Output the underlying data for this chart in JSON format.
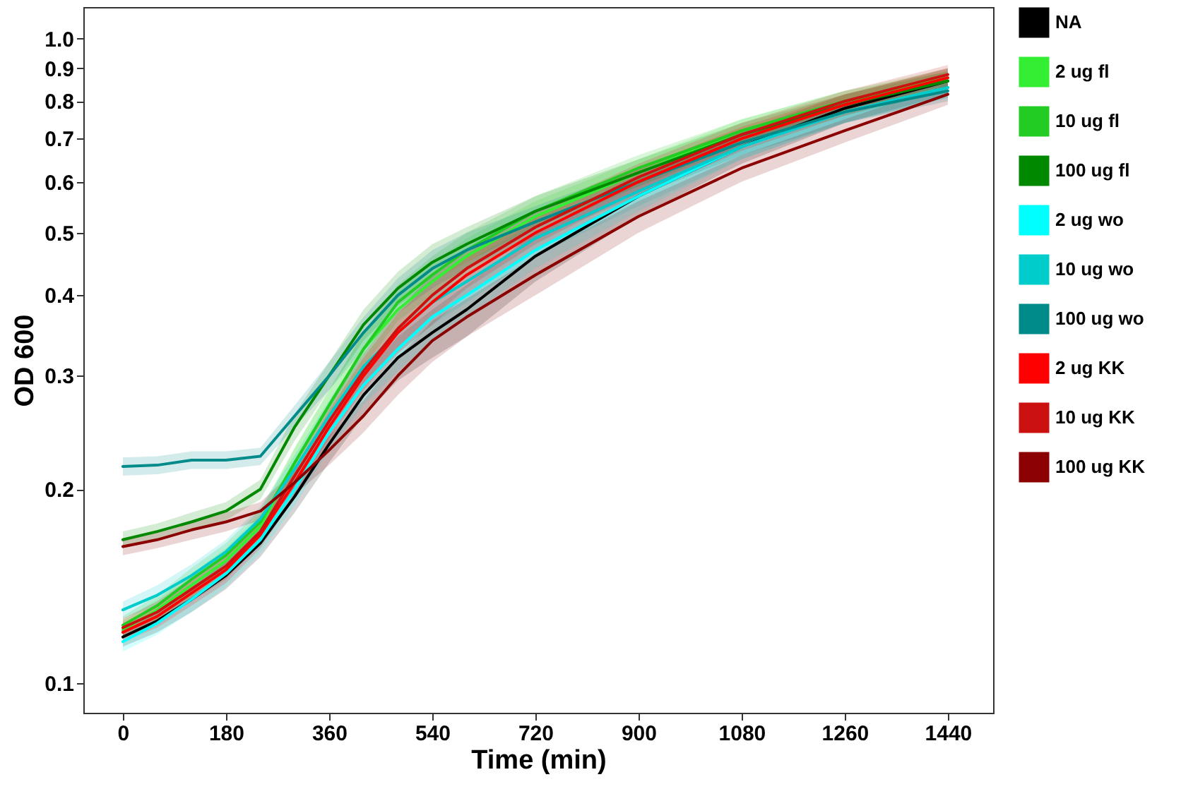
{
  "chart_data": {
    "type": "line",
    "xlabel": "Time (min)",
    "ylabel": "OD 600",
    "log": "y",
    "grid": false,
    "legend": "right",
    "marker": "none",
    "line_style": "solid",
    "xlim": [
      -69,
      1519
    ],
    "xticks": [
      0,
      180,
      360,
      540,
      720,
      900,
      1080,
      1260,
      1440
    ],
    "ylim": [
      0.09,
      1.12
    ],
    "yticks": [
      0.1,
      0.2,
      0.3,
      0.4,
      0.5,
      0.6,
      0.7,
      0.8,
      0.9,
      {
        "value": 1,
        "label": "1.0"
      }
    ],
    "x": [
      0,
      60,
      120,
      180,
      240,
      300,
      360,
      420,
      480,
      540,
      600,
      720,
      900,
      1080,
      1260,
      1440
    ],
    "series": [
      {
        "name": "NA",
        "color": "#000000",
        "values": [
          0.118,
          0.125,
          0.135,
          0.147,
          0.165,
          0.195,
          0.235,
          0.28,
          0.32,
          0.35,
          0.38,
          0.46,
          0.57,
          0.68,
          0.78,
          0.86
        ],
        "lower": [
          0.114,
          0.12,
          0.129,
          0.14,
          0.157,
          0.184,
          0.22,
          0.26,
          0.295,
          0.32,
          0.345,
          0.42,
          0.53,
          0.64,
          0.74,
          0.82
        ],
        "upper": [
          0.122,
          0.13,
          0.141,
          0.154,
          0.173,
          0.206,
          0.25,
          0.3,
          0.345,
          0.38,
          0.415,
          0.5,
          0.61,
          0.72,
          0.82,
          0.9
        ]
      },
      {
        "name": "2 ug fl",
        "color": "#33ee33",
        "values": [
          0.121,
          0.13,
          0.142,
          0.155,
          0.175,
          0.22,
          0.27,
          0.33,
          0.38,
          0.42,
          0.46,
          0.53,
          0.62,
          0.72,
          0.8,
          0.87
        ],
        "lower": [
          0.117,
          0.125,
          0.136,
          0.148,
          0.167,
          0.208,
          0.255,
          0.31,
          0.355,
          0.39,
          0.43,
          0.5,
          0.59,
          0.69,
          0.77,
          0.84
        ],
        "upper": [
          0.125,
          0.135,
          0.148,
          0.162,
          0.183,
          0.232,
          0.285,
          0.35,
          0.405,
          0.45,
          0.49,
          0.56,
          0.65,
          0.75,
          0.83,
          0.9
        ]
      },
      {
        "name": "10 ug fl",
        "color": "#22cc22",
        "values": [
          0.123,
          0.132,
          0.145,
          0.158,
          0.178,
          0.22,
          0.27,
          0.33,
          0.39,
          0.43,
          0.47,
          0.54,
          0.63,
          0.72,
          0.8,
          0.86
        ],
        "lower": [
          0.119,
          0.127,
          0.139,
          0.151,
          0.17,
          0.208,
          0.255,
          0.31,
          0.365,
          0.4,
          0.44,
          0.51,
          0.6,
          0.69,
          0.77,
          0.83
        ],
        "upper": [
          0.127,
          0.137,
          0.151,
          0.165,
          0.186,
          0.232,
          0.285,
          0.35,
          0.415,
          0.46,
          0.5,
          0.57,
          0.66,
          0.75,
          0.83,
          0.89
        ]
      },
      {
        "name": "100 ug fl",
        "color": "#008800",
        "values": [
          0.167,
          0.172,
          0.178,
          0.185,
          0.2,
          0.25,
          0.3,
          0.36,
          0.41,
          0.45,
          0.48,
          0.54,
          0.62,
          0.71,
          0.79,
          0.86
        ],
        "lower": [
          0.162,
          0.167,
          0.172,
          0.179,
          0.193,
          0.238,
          0.285,
          0.34,
          0.385,
          0.42,
          0.45,
          0.51,
          0.59,
          0.68,
          0.76,
          0.83
        ],
        "upper": [
          0.172,
          0.177,
          0.184,
          0.191,
          0.207,
          0.262,
          0.315,
          0.38,
          0.435,
          0.48,
          0.51,
          0.57,
          0.65,
          0.74,
          0.82,
          0.89
        ]
      },
      {
        "name": "2 ug wo",
        "color": "#00ffff",
        "values": [
          0.116,
          0.124,
          0.135,
          0.148,
          0.167,
          0.2,
          0.245,
          0.29,
          0.33,
          0.37,
          0.4,
          0.47,
          0.57,
          0.68,
          0.77,
          0.84
        ],
        "lower": [
          0.112,
          0.119,
          0.129,
          0.141,
          0.159,
          0.189,
          0.23,
          0.27,
          0.305,
          0.34,
          0.37,
          0.44,
          0.54,
          0.65,
          0.74,
          0.81
        ],
        "upper": [
          0.12,
          0.129,
          0.141,
          0.155,
          0.175,
          0.211,
          0.26,
          0.31,
          0.355,
          0.4,
          0.43,
          0.5,
          0.6,
          0.71,
          0.8,
          0.87
        ]
      },
      {
        "name": "10 ug wo",
        "color": "#00cccc",
        "values": [
          0.13,
          0.137,
          0.147,
          0.16,
          0.18,
          0.215,
          0.26,
          0.31,
          0.35,
          0.39,
          0.42,
          0.49,
          0.58,
          0.68,
          0.77,
          0.84
        ],
        "lower": [
          0.126,
          0.132,
          0.141,
          0.153,
          0.172,
          0.204,
          0.245,
          0.29,
          0.325,
          0.36,
          0.39,
          0.46,
          0.55,
          0.65,
          0.74,
          0.81
        ],
        "upper": [
          0.134,
          0.142,
          0.153,
          0.167,
          0.188,
          0.226,
          0.275,
          0.33,
          0.375,
          0.42,
          0.45,
          0.52,
          0.61,
          0.71,
          0.8,
          0.87
        ]
      },
      {
        "name": "100 ug wo",
        "color": "#008b8b",
        "values": [
          0.217,
          0.218,
          0.222,
          0.222,
          0.225,
          0.26,
          0.3,
          0.35,
          0.4,
          0.44,
          0.47,
          0.52,
          0.6,
          0.69,
          0.77,
          0.83
        ],
        "lower": [
          0.21,
          0.211,
          0.215,
          0.215,
          0.218,
          0.25,
          0.285,
          0.33,
          0.375,
          0.41,
          0.44,
          0.49,
          0.57,
          0.66,
          0.74,
          0.8
        ],
        "upper": [
          0.224,
          0.225,
          0.229,
          0.229,
          0.232,
          0.27,
          0.315,
          0.37,
          0.425,
          0.47,
          0.5,
          0.55,
          0.63,
          0.72,
          0.8,
          0.86
        ]
      },
      {
        "name": "2 ug KK",
        "color": "#ff0000",
        "values": [
          0.12,
          0.127,
          0.138,
          0.15,
          0.17,
          0.205,
          0.25,
          0.3,
          0.35,
          0.39,
          0.43,
          0.5,
          0.6,
          0.7,
          0.79,
          0.87
        ],
        "lower": [
          0.116,
          0.122,
          0.132,
          0.143,
          0.162,
          0.194,
          0.235,
          0.28,
          0.325,
          0.36,
          0.4,
          0.47,
          0.57,
          0.67,
          0.76,
          0.84
        ],
        "upper": [
          0.124,
          0.132,
          0.144,
          0.157,
          0.178,
          0.216,
          0.265,
          0.32,
          0.375,
          0.42,
          0.46,
          0.53,
          0.63,
          0.73,
          0.82,
          0.9
        ]
      },
      {
        "name": "10 ug KK",
        "color": "#cc1111",
        "values": [
          0.122,
          0.129,
          0.14,
          0.152,
          0.172,
          0.21,
          0.255,
          0.305,
          0.355,
          0.4,
          0.44,
          0.51,
          0.61,
          0.71,
          0.8,
          0.88
        ],
        "lower": [
          0.118,
          0.124,
          0.134,
          0.145,
          0.164,
          0.199,
          0.24,
          0.285,
          0.33,
          0.37,
          0.41,
          0.48,
          0.58,
          0.68,
          0.77,
          0.85
        ],
        "upper": [
          0.126,
          0.134,
          0.146,
          0.159,
          0.18,
          0.221,
          0.27,
          0.325,
          0.38,
          0.43,
          0.47,
          0.54,
          0.64,
          0.74,
          0.83,
          0.91
        ]
      },
      {
        "name": "100 ug KK",
        "color": "#8b0000",
        "values": [
          0.163,
          0.167,
          0.173,
          0.178,
          0.185,
          0.205,
          0.23,
          0.26,
          0.3,
          0.34,
          0.37,
          0.43,
          0.53,
          0.63,
          0.72,
          0.82
        ],
        "lower": [
          0.158,
          0.162,
          0.167,
          0.172,
          0.179,
          0.196,
          0.218,
          0.245,
          0.28,
          0.315,
          0.345,
          0.4,
          0.5,
          0.6,
          0.69,
          0.79
        ],
        "upper": [
          0.168,
          0.172,
          0.179,
          0.184,
          0.191,
          0.214,
          0.242,
          0.275,
          0.32,
          0.365,
          0.395,
          0.46,
          0.56,
          0.66,
          0.75,
          0.85
        ]
      }
    ]
  }
}
